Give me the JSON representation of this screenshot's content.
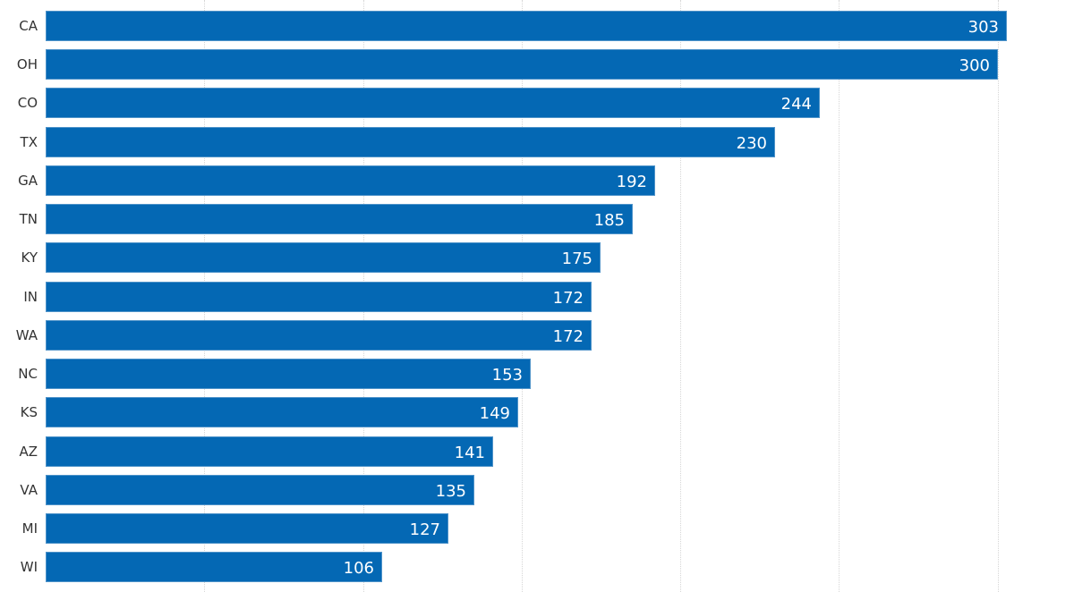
{
  "chart_data": {
    "type": "bar",
    "orientation": "horizontal",
    "title": "",
    "xlabel": "",
    "ylabel": "",
    "categories": [
      "CA",
      "OH",
      "CO",
      "TX",
      "GA",
      "TN",
      "KY",
      "IN",
      "WA",
      "NC",
      "KS",
      "AZ",
      "VA",
      "MI",
      "WI"
    ],
    "values": [
      303,
      300,
      244,
      230,
      192,
      185,
      175,
      172,
      172,
      153,
      149,
      141,
      135,
      127,
      106
    ],
    "xlim": [
      0,
      325
    ],
    "gridlines_x": [
      50,
      100,
      150,
      200,
      250,
      300
    ],
    "grid": true,
    "grid_style": "dotted vertical",
    "data_labels": "inside end, white",
    "legend": null
  },
  "style": {
    "bar_color": "#0468b4",
    "label_color": "#333333",
    "value_label_color": "#ffffff",
    "grid_color": "#d6d6d6"
  },
  "bars": [
    {
      "label": "CA",
      "value": "303"
    },
    {
      "label": "OH",
      "value": "300"
    },
    {
      "label": "CO",
      "value": "244"
    },
    {
      "label": "TX",
      "value": "230"
    },
    {
      "label": "GA",
      "value": "192"
    },
    {
      "label": "TN",
      "value": "185"
    },
    {
      "label": "KY",
      "value": "175"
    },
    {
      "label": "IN",
      "value": "172"
    },
    {
      "label": "WA",
      "value": "172"
    },
    {
      "label": "NC",
      "value": "153"
    },
    {
      "label": "KS",
      "value": "149"
    },
    {
      "label": "AZ",
      "value": "141"
    },
    {
      "label": "VA",
      "value": "135"
    },
    {
      "label": "MI",
      "value": "127"
    },
    {
      "label": "WI",
      "value": "106"
    }
  ]
}
